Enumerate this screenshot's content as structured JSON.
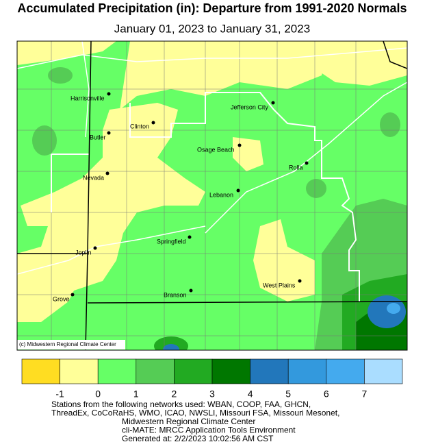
{
  "title": "Accumulated Precipitation (in): Departure from 1991-2020 Normals",
  "subtitle": "January 01, 2023 to January 31, 2023",
  "cities": [
    "Harrisonville",
    "Clinton",
    "Butler",
    "Jefferson City",
    "Osage Beach",
    "Rolla",
    "Nevada",
    "Lebanon",
    "Joplin",
    "Springfield",
    "Grove",
    "Branson",
    "West Plains"
  ],
  "credit": "(c) Midwestern Regional Climate Center",
  "legend": {
    "colors": [
      "#ffdd22",
      "#ffff99",
      "#66ff66",
      "#55cc55",
      "#22aa22",
      "#007700",
      "#2277bb",
      "#3399dd",
      "#44aaee",
      "#aaddff"
    ],
    "ticks": [
      -1,
      0,
      1,
      2,
      3,
      4,
      5,
      6,
      7
    ]
  },
  "footer": [
    "Stations from the following networks used: WBAN, COOP, FAA, GHCN,",
    "ThreadEx, CoCoRaHS, WMO, ICAO, NWSLI, Missouri FSA, Missouri Mesonet,",
    "Midwestern Regional Climate Center",
    "cli-MATE: MRCC Application Tools Environment",
    "Generated at: 2/2/2023 10:02:56 AM CST"
  ]
}
